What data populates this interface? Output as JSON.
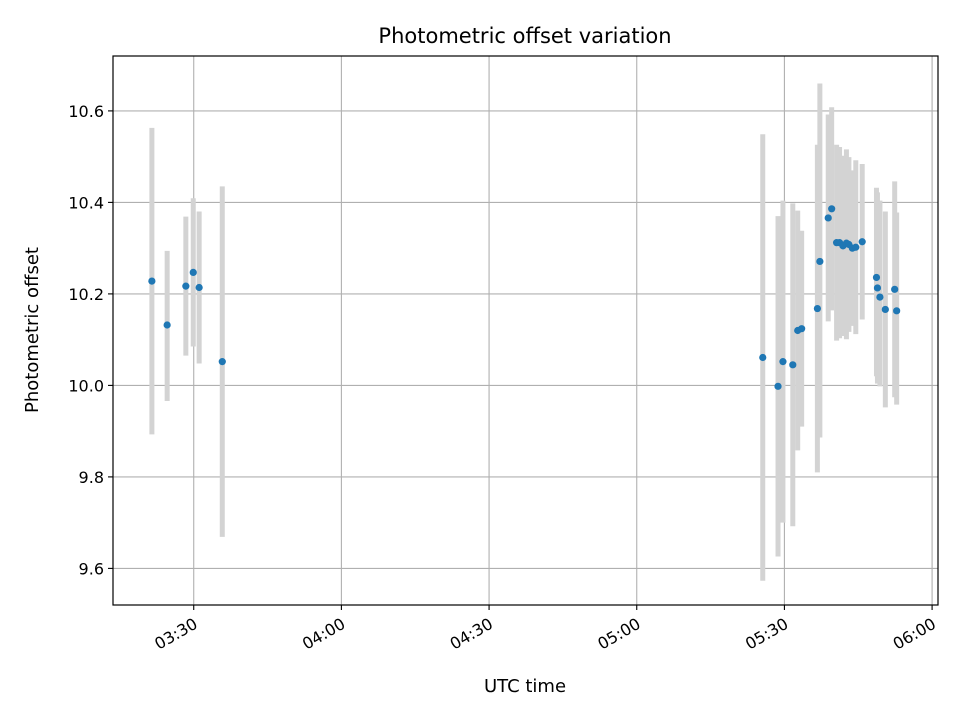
{
  "chart_data": {
    "type": "scatter",
    "title": "Photometric offset variation",
    "xlabel": "UTC time",
    "ylabel": "Photometric offset",
    "x_unit": "UTC time (HH:MM)",
    "xlim": [
      "03:13:36",
      "06:01:12"
    ],
    "ylim": [
      9.52,
      10.72
    ],
    "grid": true,
    "x_ticks": [
      {
        "value": "03:30:00",
        "label": "03:30"
      },
      {
        "value": "04:00:00",
        "label": "04:00"
      },
      {
        "value": "04:30:00",
        "label": "04:30"
      },
      {
        "value": "05:00:00",
        "label": "05:00"
      },
      {
        "value": "05:30:00",
        "label": "05:30"
      },
      {
        "value": "06:00:00",
        "label": "06:00"
      }
    ],
    "y_ticks": [
      9.6,
      9.8,
      10.0,
      10.2,
      10.4,
      10.6
    ],
    "y_tick_labels": [
      "9.6",
      "9.8",
      "10.0",
      "10.2",
      "10.4",
      "10.6"
    ],
    "colors": {
      "point": "#1f77b4",
      "errorbar": "#d3d3d3",
      "grid": "#b0b0b0"
    },
    "points": [
      {
        "x": "03:21:30",
        "y": 10.228,
        "err_low": 9.893,
        "err_high": 10.563
      },
      {
        "x": "03:24:36",
        "y": 10.132,
        "err_low": 9.966,
        "err_high": 10.294
      },
      {
        "x": "03:28:24",
        "y": 10.217,
        "err_low": 10.065,
        "err_high": 10.369
      },
      {
        "x": "03:29:54",
        "y": 10.247,
        "err_low": 10.085,
        "err_high": 10.409
      },
      {
        "x": "03:31:06",
        "y": 10.214,
        "err_low": 10.048,
        "err_high": 10.38
      },
      {
        "x": "03:35:48",
        "y": 10.052,
        "err_low": 9.669,
        "err_high": 10.435
      },
      {
        "x": "05:25:36",
        "y": 10.061,
        "err_low": 9.573,
        "err_high": 10.549
      },
      {
        "x": "05:28:42",
        "y": 9.998,
        "err_low": 9.626,
        "err_high": 10.37
      },
      {
        "x": "05:29:42",
        "y": 10.052,
        "err_low": 9.7,
        "err_high": 10.404
      },
      {
        "x": "05:31:42",
        "y": 10.045,
        "err_low": 9.692,
        "err_high": 10.398
      },
      {
        "x": "05:32:42",
        "y": 10.12,
        "err_low": 9.858,
        "err_high": 10.382
      },
      {
        "x": "05:33:30",
        "y": 10.124,
        "err_low": 9.91,
        "err_high": 10.338
      },
      {
        "x": "05:36:42",
        "y": 10.168,
        "err_low": 9.81,
        "err_high": 10.526
      },
      {
        "x": "05:37:12",
        "y": 10.271,
        "err_low": 9.886,
        "err_high": 10.66
      },
      {
        "x": "05:38:54",
        "y": 10.366,
        "err_low": 10.14,
        "err_high": 10.592
      },
      {
        "x": "05:39:36",
        "y": 10.386,
        "err_low": 10.164,
        "err_high": 10.608
      },
      {
        "x": "05:40:36",
        "y": 10.312,
        "err_low": 10.098,
        "err_high": 10.526
      },
      {
        "x": "05:41:12",
        "y": 10.312,
        "err_low": 10.103,
        "err_high": 10.521
      },
      {
        "x": "05:41:54",
        "y": 10.305,
        "err_low": 10.108,
        "err_high": 10.502
      },
      {
        "x": "05:42:36",
        "y": 10.311,
        "err_low": 10.101,
        "err_high": 10.516
      },
      {
        "x": "05:43:06",
        "y": 10.308,
        "err_low": 10.117,
        "err_high": 10.499
      },
      {
        "x": "05:43:48",
        "y": 10.3,
        "err_low": 10.13,
        "err_high": 10.47
      },
      {
        "x": "05:44:30",
        "y": 10.302,
        "err_low": 10.112,
        "err_high": 10.492
      },
      {
        "x": "05:45:48",
        "y": 10.314,
        "err_low": 10.144,
        "err_high": 10.484
      },
      {
        "x": "05:48:42",
        "y": 10.236,
        "err_low": 10.02,
        "err_high": 10.432
      },
      {
        "x": "05:48:54",
        "y": 10.213,
        "err_low": 10.004,
        "err_high": 10.422
      },
      {
        "x": "05:49:24",
        "y": 10.193,
        "err_low": 9.998,
        "err_high": 10.404
      },
      {
        "x": "05:50:30",
        "y": 10.166,
        "err_low": 9.952,
        "err_high": 10.38
      },
      {
        "x": "05:52:24",
        "y": 10.21,
        "err_low": 9.974,
        "err_high": 10.446
      },
      {
        "x": "05:52:48",
        "y": 10.163,
        "err_low": 9.958,
        "err_high": 10.378
      }
    ]
  }
}
